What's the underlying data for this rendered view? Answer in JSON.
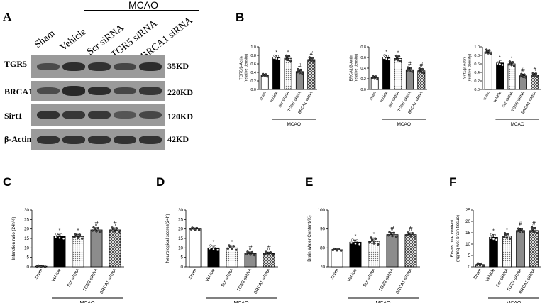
{
  "panelA": {
    "letter": "A",
    "mcao_label": "MCAO",
    "lanes": [
      "Sham",
      "Vehicle",
      "Scr siRNA",
      "TGR5 siRNA",
      "BRCA1 siRNA"
    ],
    "blots": [
      {
        "protein": "TGR5",
        "kd": "35KD",
        "intensities": [
          0.55,
          0.85,
          0.8,
          0.6,
          0.85
        ]
      },
      {
        "protein": "BRCA1",
        "kd": "220KD",
        "intensities": [
          0.55,
          0.9,
          0.85,
          0.6,
          0.75
        ]
      },
      {
        "protein": "Sirt1",
        "kd": "120KD",
        "intensities": [
          0.8,
          0.75,
          0.75,
          0.45,
          0.6
        ]
      },
      {
        "protein": "β-Actin",
        "kd": "42KD",
        "intensities": [
          0.8,
          0.8,
          0.8,
          0.8,
          0.8
        ]
      }
    ]
  },
  "chart_data": [
    {
      "id": "B1",
      "panel": "B",
      "type": "bar",
      "categories": [
        "sham",
        "vehicle",
        "Scr siRNA",
        "TGR5 siRNA",
        "BRCA1 siRNA"
      ],
      "values": [
        0.33,
        0.75,
        0.73,
        0.42,
        0.7
      ],
      "errors": [
        0.03,
        0.04,
        0.06,
        0.05,
        0.05
      ],
      "marks": [
        "",
        "*",
        "*",
        "#",
        "#"
      ],
      "ylabel": "TGR5/β-Actin\n(relative density)",
      "ylim": [
        0,
        1.0
      ],
      "yticks": [
        "0.0",
        "0.2",
        "0.4",
        "0.6",
        "0.8",
        "1.0"
      ],
      "group_label": "MCAO",
      "group_start": 1
    },
    {
      "id": "B2",
      "panel": "",
      "type": "bar",
      "categories": [
        "sham",
        "vehicle",
        "Scr siRNA",
        "TGR5 siRNA",
        "BRCA1 siRNA"
      ],
      "values": [
        0.22,
        0.6,
        0.58,
        0.37,
        0.35
      ],
      "errors": [
        0.03,
        0.04,
        0.05,
        0.04,
        0.04
      ],
      "marks": [
        "",
        "*",
        "*",
        "#",
        "#"
      ],
      "ylabel": "BRCA1/β-Actin\n(relative density)",
      "ylim": [
        0,
        0.8
      ],
      "yticks": [
        "0.0",
        "0.2",
        "0.4",
        "0.6",
        "0.8"
      ],
      "group_label": "MCAO",
      "group_start": 1
    },
    {
      "id": "B3",
      "panel": "",
      "type": "bar",
      "categories": [
        "sham",
        "vehicle",
        "Scr siRNA",
        "TGR5 siRNA",
        "BRCA1 siRNA"
      ],
      "values": [
        0.88,
        0.62,
        0.6,
        0.32,
        0.34
      ],
      "errors": [
        0.05,
        0.05,
        0.05,
        0.04,
        0.04
      ],
      "marks": [
        "",
        "*",
        "*",
        "#",
        "#"
      ],
      "ylabel": "Sirt1/β-Actin\n(relative density)",
      "ylim": [
        0,
        1.0
      ],
      "yticks": [
        "0.0",
        "0.2",
        "0.4",
        "0.6",
        "0.8",
        "1.0"
      ],
      "group_label": "MCAO",
      "group_start": 1
    },
    {
      "id": "C",
      "panel": "C",
      "type": "bar",
      "categories": [
        "Sham",
        "Vehicle",
        "Scr siRNA",
        "TGR5 siRNA",
        "BRCA1 siRNA"
      ],
      "values": [
        0.3,
        16,
        16,
        19.5,
        19.5
      ],
      "errors": [
        0.3,
        1.2,
        1.2,
        1.2,
        1.1
      ],
      "marks": [
        "",
        "*",
        "*",
        "#",
        "#"
      ],
      "ylabel": "Infarction ratio (24h%)",
      "ylim": [
        0,
        30
      ],
      "yticks": [
        "0",
        "5",
        "10",
        "15",
        "20",
        "25",
        "30"
      ],
      "group_label": "MCAO",
      "group_start": 1
    },
    {
      "id": "D",
      "panel": "D",
      "type": "bar",
      "categories": [
        "Sham",
        "Vehicle",
        "Scr siRNA",
        "TGR5 siRNA",
        "BRCA1 siRNA"
      ],
      "values": [
        20,
        10,
        10,
        7,
        7
      ],
      "errors": [
        0.6,
        1.2,
        1.2,
        0.9,
        0.8
      ],
      "marks": [
        "",
        "*",
        "*",
        "#",
        "#"
      ],
      "ylabel": "Neurological scores(24h)",
      "ylim": [
        0,
        30
      ],
      "yticks": [
        "0",
        "5",
        "10",
        "15",
        "20",
        "25",
        "30"
      ],
      "group_label": "MCAO",
      "group_start": 1
    },
    {
      "id": "E",
      "panel": "E",
      "type": "bar",
      "categories": [
        "Sham",
        "Vehicle",
        "Scr siRNA",
        "TGR5 siRNA",
        "BRCA1 siRNA"
      ],
      "values": [
        79,
        83,
        83.5,
        87,
        87
      ],
      "errors": [
        0.5,
        1.2,
        1.8,
        1.2,
        1.0
      ],
      "marks": [
        "",
        "*",
        "*",
        "#",
        "#"
      ],
      "ylabel": "Brain Water Content(%)",
      "ylim": [
        70,
        100
      ],
      "yticks": [
        "70",
        "80",
        "90",
        "100"
      ],
      "group_label": "MCAO",
      "group_start": 1
    },
    {
      "id": "F",
      "panel": "F",
      "type": "bar",
      "categories": [
        "Sham",
        "Vehicle",
        "Scr siRNA",
        "TGR5 siRNA",
        "BRCA1 siRNA"
      ],
      "values": [
        1,
        13,
        13.5,
        16,
        16
      ],
      "errors": [
        0.5,
        1.2,
        1.2,
        0.8,
        1.3
      ],
      "marks": [
        "",
        "*",
        "*",
        "#",
        "#"
      ],
      "ylabel": "Evans blue content\n(ng/mg wet brain tissue)",
      "ylim": [
        0,
        25
      ],
      "yticks": [
        "0",
        "5",
        "10",
        "15",
        "20",
        "25"
      ],
      "group_label": "MCAO",
      "group_start": 1
    }
  ]
}
